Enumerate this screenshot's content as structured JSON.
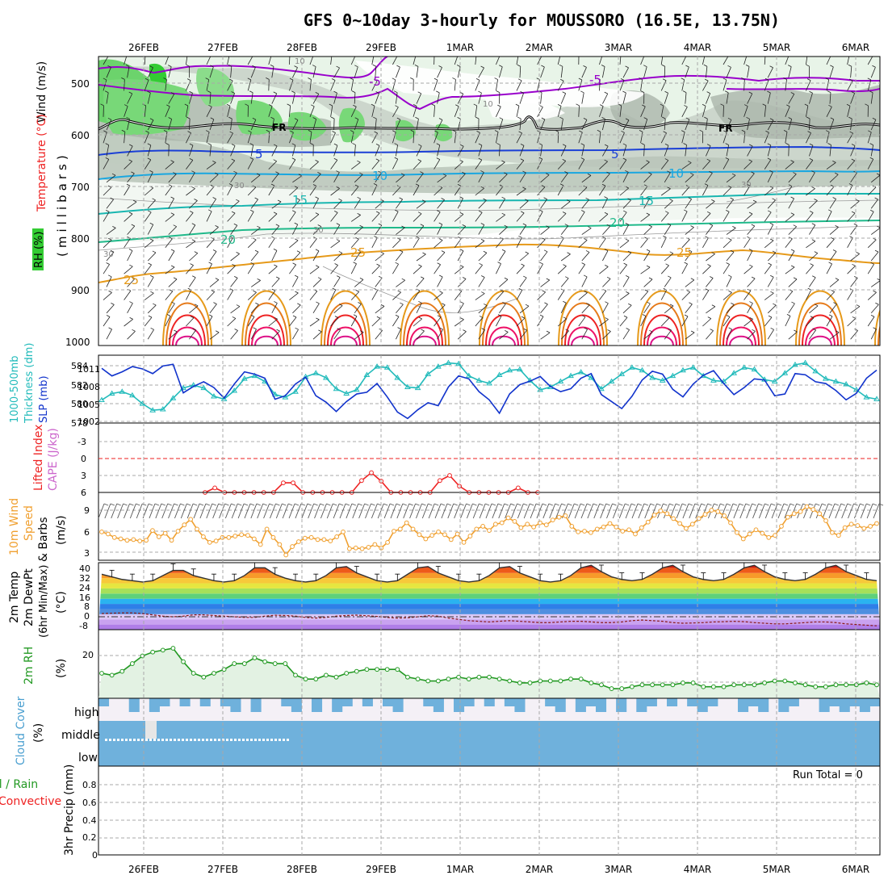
{
  "title": "GFS 0~10day 3-hourly for MOUSSORO (16.5E, 13.75N)",
  "dates": [
    "26FEB",
    "27FEB",
    "28FEB",
    "29FEB",
    "1MAR",
    "2MAR",
    "3MAR",
    "4MAR",
    "5MAR",
    "6MAR"
  ],
  "colors": {
    "rh_green": "#33cc33",
    "rh_grey": "#999999",
    "temp_500": "#9900cc",
    "temp_5": "#1a3fd6",
    "temp_10": "#1aa7e0",
    "temp_15": "#18b6b0",
    "temp_20": "#1fb98a",
    "temp_25": "#e69a1a",
    "temp_hot": "#ff2200",
    "thickness": "#22bbbb",
    "slp": "#1133cc",
    "lifted": "#ee2222",
    "wind10": "#f0a030",
    "rh2m": "#229922",
    "rh2m_fill": "#e3f2e3",
    "cloud": "#6fb1dc"
  },
  "panels": {
    "upper": {
      "ylabel": "(millibars)",
      "legend": [
        "Wind (m/s)",
        "Temperature (°C)",
        "RH (%)"
      ],
      "yticks": [
        "500",
        "600",
        "700",
        "800",
        "900",
        "1000"
      ],
      "contour_labels": {
        "m5a": "-5",
        "m5b": "-5",
        "fr1": "FR",
        "fr2": "FR",
        "p5a": "5",
        "p5b": "5",
        "p10a": "10",
        "p10b": "10",
        "p15a": "15",
        "p15b": "15",
        "p20a": "20",
        "p20b": "20",
        "p25a": "25",
        "p25b": "25",
        "p25c": "25",
        "rh10a": "10",
        "rh10b": "10",
        "rh30a": "30",
        "rh30b": "30",
        "rh30c": "30",
        "rh30d": "30"
      }
    },
    "thickness": {
      "legend_thick": "Thickness (dm)",
      "legend_thick_prefix": "1000-500mb",
      "legend_slp": "SLP (mb)",
      "yticks_left": [
        "584",
        "582",
        "580",
        "578"
      ],
      "yticks_right": [
        "1011",
        "1008",
        "1005",
        "1002"
      ]
    },
    "lifted": {
      "legend_li": "Lifted Index",
      "legend_cape": "CAPE (J/kg)",
      "yticks": [
        "-3",
        "0",
        "3",
        "6"
      ]
    },
    "wind": {
      "legend_a": "10m Wind",
      "legend_b": "Speed",
      "legend_c": "& Barbs",
      "unit": "(m/s)",
      "yticks": [
        "9",
        "6",
        "3"
      ]
    },
    "temp": {
      "legend_a": "2m Temp",
      "legend_b": "2m DewPt",
      "legend_c": "(6hr Min/Max)",
      "unit": "(°C)",
      "yticks": [
        "40",
        "32",
        "24",
        "16",
        "8",
        "0",
        "-8"
      ]
    },
    "rh": {
      "legend": "2m RH",
      "unit": "(%)",
      "yticks": [
        "20"
      ]
    },
    "cloud": {
      "legend": "Cloud Cover",
      "unit": "(%)",
      "levels": [
        "high",
        "middle",
        "low"
      ]
    },
    "precip": {
      "legend_a": "3hr Precip (mm)",
      "legend_b": "Total / Rain",
      "legend_c": "Convective",
      "run_total": "Run Total = 0",
      "yticks": [
        "0.8",
        "0.6",
        "0.4",
        "0.2",
        "0"
      ]
    }
  },
  "chart_data": [
    {
      "type": "line",
      "title": "1000-500mb Thickness (dm) / SLP (mb)",
      "x_unit": "3-hourly steps from 25FEB 12Z",
      "series": [
        {
          "name": "Thickness (dm)",
          "values": [
            580.3,
            581.0,
            581.2,
            580.8,
            579.9,
            579.2,
            579.3,
            580.5,
            581.6,
            581.9,
            581.6,
            580.7,
            580.4,
            581.3,
            582.6,
            582.9,
            582.3,
            580.9,
            580.6,
            581.2,
            582.8,
            583.2,
            582.7,
            581.5,
            581.0,
            581.4,
            583.0,
            583.9,
            583.8,
            582.7,
            581.7,
            581.6,
            583.1,
            583.9,
            584.3,
            584.2,
            582.9,
            582.4,
            582.1,
            583.0,
            583.5,
            583.6,
            582.4,
            581.4,
            581.7,
            582.3,
            582.9,
            583.3,
            582.7,
            581.5,
            582.3,
            583.1,
            583.8,
            583.5,
            582.7,
            582.4,
            582.9,
            583.5,
            583.8,
            582.9,
            582.4,
            582.3,
            583.2,
            583.8,
            583.6,
            582.5,
            582.3,
            583.2,
            584.1,
            584.3,
            583.4,
            582.6,
            582.3,
            582.0,
            581.4,
            580.6,
            580.4
          ]
        },
        {
          "name": "SLP (mb)",
          "values": [
            1011.1,
            1009.8,
            1010.5,
            1011.4,
            1011.0,
            1010.2,
            1011.5,
            1011.8,
            1006.9,
            1008.0,
            1008.8,
            1007.8,
            1006.0,
            1008.4,
            1010.5,
            1010.1,
            1009.4,
            1005.8,
            1006.4,
            1008.4,
            1009.6,
            1006.4,
            1005.3,
            1003.7,
            1005.4,
            1006.7,
            1007.0,
            1008.5,
            1006.2,
            1003.6,
            1002.5,
            1004.0,
            1005.2,
            1004.7,
            1007.9,
            1009.8,
            1009.3,
            1007.1,
            1005.7,
            1003.4,
            1006.7,
            1008.3,
            1008.9,
            1009.7,
            1008.0,
            1007.1,
            1007.6,
            1009.4,
            1010.2,
            1006.6,
            1005.4,
            1004.2,
            1006.3,
            1009.1,
            1010.6,
            1010.1,
            1007.5,
            1006.2,
            1008.4,
            1009.9,
            1010.7,
            1008.5,
            1006.6,
            1007.8,
            1009.3,
            1009.1,
            1006.4,
            1006.7,
            1010.2,
            1010.0,
            1008.8,
            1008.5,
            1007.3,
            1005.7,
            1006.8,
            1009.4,
            1010.8
          ]
        }
      ]
    },
    {
      "type": "line",
      "title": "Lifted Index / CAPE (J/kg)",
      "x_unit": "3-hourly steps from 25FEB 12Z",
      "ylim": [
        -5,
        6
      ],
      "series": [
        {
          "name": "Lifted Index",
          "values": [
            6.0,
            5.2,
            6.0,
            6.0,
            6.0,
            6.0,
            6.0,
            6.0,
            4.3,
            4.3,
            6.0,
            6.0,
            6.0,
            6.0,
            6.0,
            6.0,
            3.9,
            2.5,
            4.0,
            6.0,
            6.0,
            6.0,
            6.0,
            6.0,
            3.9,
            3.0,
            4.9,
            6.0,
            6.0,
            6.0,
            6.0,
            6.0,
            5.2,
            6.0,
            6.0
          ]
        }
      ]
    },
    {
      "type": "line",
      "title": "10m Wind Speed (m/s)",
      "x_unit": "3-hourly steps from 25FEB 12Z",
      "series": [
        {
          "name": "10m Wind Speed",
          "values": [
            5.9,
            5.6,
            5.1,
            4.9,
            4.7,
            4.8,
            4.6,
            4.7,
            6.1,
            5.2,
            5.7,
            4.7,
            6.0,
            6.9,
            7.7,
            6.3,
            5.2,
            4.4,
            4.6,
            5.1,
            5.1,
            5.3,
            5.5,
            5.4,
            4.9,
            4.1,
            6.3,
            5.1,
            4.1,
            2.6,
            3.8,
            4.5,
            5.0,
            5.1,
            4.8,
            4.8,
            4.6,
            5.2,
            5.9,
            3.5,
            3.6,
            3.5,
            3.7,
            4.1,
            3.6,
            4.4,
            6.0,
            6.3,
            7.2,
            6.3,
            5.5,
            4.9,
            5.4,
            5.9,
            5.5,
            4.8,
            5.6,
            4.4,
            5.3,
            6.3,
            6.7,
            6.1,
            7.0,
            7.2,
            7.9,
            7.4,
            6.5,
            7.0,
            6.6,
            7.2,
            6.9,
            7.6,
            8.0,
            8.2,
            6.7,
            5.9,
            6.0,
            5.8,
            6.3,
            6.6,
            7.1,
            6.6,
            6.0,
            6.2,
            5.6,
            6.5,
            7.3,
            8.3,
            8.9,
            8.5,
            7.8,
            7.1,
            6.4,
            7.0,
            7.8,
            8.4,
            9.0,
            8.8,
            8.2,
            7.2,
            5.8,
            4.9,
            5.6,
            6.2,
            5.7,
            5.1,
            5.4,
            6.7,
            8.0,
            8.5,
            8.8,
            9.5,
            9.1,
            8.5,
            7.5,
            5.8,
            5.4,
            6.5,
            7.0,
            6.8,
            6.4,
            6.7,
            7.1
          ]
        }
      ]
    },
    {
      "type": "area",
      "title": "2m Temp / 2m DewPt (°C)",
      "x_unit": "3-hourly steps from 25FEB 12Z",
      "ylim": [
        -10,
        42
      ],
      "series": [
        {
          "name": "2m Temp",
          "values": [
            33,
            31,
            29,
            28,
            27,
            28,
            32,
            36,
            36,
            32,
            30,
            28,
            27,
            28,
            32,
            38,
            38,
            33,
            30,
            28,
            27,
            28,
            32,
            38,
            39,
            34,
            31,
            28,
            27,
            28,
            33,
            38,
            39,
            34,
            31,
            28,
            27,
            28,
            32,
            38,
            39,
            34,
            31,
            28,
            27,
            28,
            32,
            38,
            40,
            35,
            31,
            29,
            28,
            29,
            33,
            38,
            40,
            35,
            31,
            29,
            28,
            29,
            33,
            38,
            40,
            35,
            31,
            29,
            28,
            29,
            33,
            38,
            40,
            35,
            32,
            29,
            28
          ]
        },
        {
          "name": "2m DewPt",
          "values": [
            2.5,
            2.8,
            3.0,
            3.0,
            2.5,
            1.5,
            0.5,
            0.0,
            0.5,
            1.5,
            1.5,
            1.0,
            0.5,
            0.0,
            -0.5,
            -0.5,
            0.5,
            1.2,
            1.0,
            0.5,
            -0.5,
            -1.0,
            -0.5,
            0.5,
            1.0,
            1.3,
            0.8,
            0.3,
            -0.5,
            -1.0,
            -0.8,
            0.0,
            0.8,
            0.5,
            -1.0,
            -2.0,
            -3.0,
            -3.5,
            -4.0,
            -3.5,
            -3.0,
            -3.5,
            -4.0,
            -4.5,
            -4.5,
            -4.0,
            -3.5,
            -3.5,
            -4.0,
            -4.5,
            -4.5,
            -4.0,
            -3.0,
            -2.5,
            -3.0,
            -3.5,
            -4.5,
            -5.0,
            -4.8,
            -4.5,
            -4.0,
            -3.8,
            -3.5,
            -3.8,
            -4.5,
            -5.0,
            -5.5,
            -5.5,
            -5.0,
            -4.5,
            -4.0,
            -4.0,
            -4.5,
            -5.5,
            -6.0,
            -6.5,
            -7.0
          ]
        }
      ]
    },
    {
      "type": "area",
      "title": "2m RH (%)",
      "x_unit": "3-hourly steps from 25FEB 12Z",
      "series": [
        {
          "name": "2m RH",
          "values": [
            13,
            12,
            14,
            18,
            22,
            24,
            25,
            26,
            19,
            13,
            11,
            13,
            15,
            18,
            18,
            21,
            19,
            18,
            18,
            12,
            10,
            10,
            12,
            11,
            13,
            14,
            15,
            15,
            15,
            15,
            11,
            10,
            9,
            9,
            10,
            11,
            10,
            11,
            11,
            10,
            9,
            8,
            8,
            9,
            9,
            9,
            10,
            10,
            8,
            7,
            5,
            5,
            6,
            7,
            7,
            7,
            7,
            8,
            8,
            6,
            6,
            6,
            7,
            7,
            7,
            8,
            9,
            9,
            8,
            7,
            6,
            6,
            7,
            7,
            7,
            8,
            7
          ]
        }
      ]
    },
    {
      "type": "table",
      "title": "3hr Precip (mm)",
      "ylim": [
        0,
        1
      ],
      "run_total": 0
    }
  ]
}
